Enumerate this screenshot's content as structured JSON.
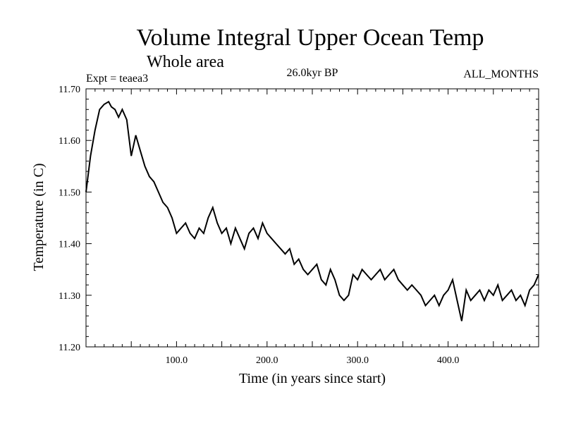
{
  "chart_data": {
    "type": "line",
    "title": "Volume Integral Upper Ocean Temp",
    "subtitle": "Whole area",
    "experiment": "Expt = teaea3",
    "period": "26.0kyr BP",
    "months": "ALL_MONTHS",
    "xlabel": "Time (in years since start)",
    "ylabel": "Temperature (in C)",
    "xlim": [
      0,
      500
    ],
    "ylim": [
      11.2,
      11.7
    ],
    "x_ticks": [
      100,
      200,
      300,
      400
    ],
    "x_tick_labels": [
      "100.0",
      "200.0",
      "300.0",
      "400.0"
    ],
    "y_ticks": [
      11.2,
      11.3,
      11.4,
      11.5,
      11.6,
      11.7
    ],
    "y_tick_labels": [
      "11.20",
      "11.30",
      "11.40",
      "11.50",
      "11.60",
      "11.70"
    ],
    "series": [
      {
        "name": "Volume Integral Upper Ocean Temp",
        "x": [
          0,
          5,
          10,
          15,
          20,
          25,
          28,
          32,
          36,
          40,
          45,
          50,
          55,
          60,
          65,
          70,
          75,
          80,
          85,
          90,
          95,
          100,
          105,
          110,
          115,
          120,
          125,
          130,
          135,
          140,
          145,
          150,
          155,
          160,
          165,
          170,
          175,
          180,
          185,
          190,
          195,
          200,
          205,
          210,
          215,
          220,
          225,
          230,
          235,
          240,
          245,
          250,
          255,
          260,
          265,
          270,
          275,
          280,
          285,
          290,
          295,
          300,
          305,
          310,
          315,
          320,
          325,
          330,
          335,
          340,
          345,
          350,
          355,
          360,
          365,
          370,
          375,
          380,
          385,
          390,
          395,
          400,
          405,
          410,
          415,
          420,
          425,
          430,
          435,
          440,
          445,
          450,
          455,
          460,
          465,
          470,
          475,
          480,
          485,
          490,
          495,
          500
        ],
        "values": [
          11.5,
          11.57,
          11.62,
          11.66,
          11.67,
          11.675,
          11.665,
          11.66,
          11.645,
          11.66,
          11.64,
          11.57,
          11.61,
          11.58,
          11.55,
          11.53,
          11.52,
          11.5,
          11.48,
          11.47,
          11.45,
          11.42,
          11.43,
          11.44,
          11.42,
          11.41,
          11.43,
          11.42,
          11.45,
          11.47,
          11.44,
          11.42,
          11.43,
          11.4,
          11.43,
          11.41,
          11.39,
          11.42,
          11.43,
          11.41,
          11.44,
          11.42,
          11.41,
          11.4,
          11.39,
          11.38,
          11.39,
          11.36,
          11.37,
          11.35,
          11.34,
          11.35,
          11.36,
          11.33,
          11.32,
          11.35,
          11.33,
          11.3,
          11.29,
          11.3,
          11.34,
          11.33,
          11.35,
          11.34,
          11.33,
          11.34,
          11.35,
          11.33,
          11.34,
          11.35,
          11.33,
          11.32,
          11.31,
          11.32,
          11.31,
          11.3,
          11.28,
          11.29,
          11.3,
          11.28,
          11.3,
          11.31,
          11.33,
          11.29,
          11.25,
          11.31,
          11.29,
          11.3,
          11.31,
          11.29,
          11.31,
          11.3,
          11.32,
          11.29,
          11.3,
          11.31,
          11.29,
          11.3,
          11.28,
          11.31,
          11.32,
          11.34
        ]
      }
    ],
    "line_color": "#000000"
  }
}
